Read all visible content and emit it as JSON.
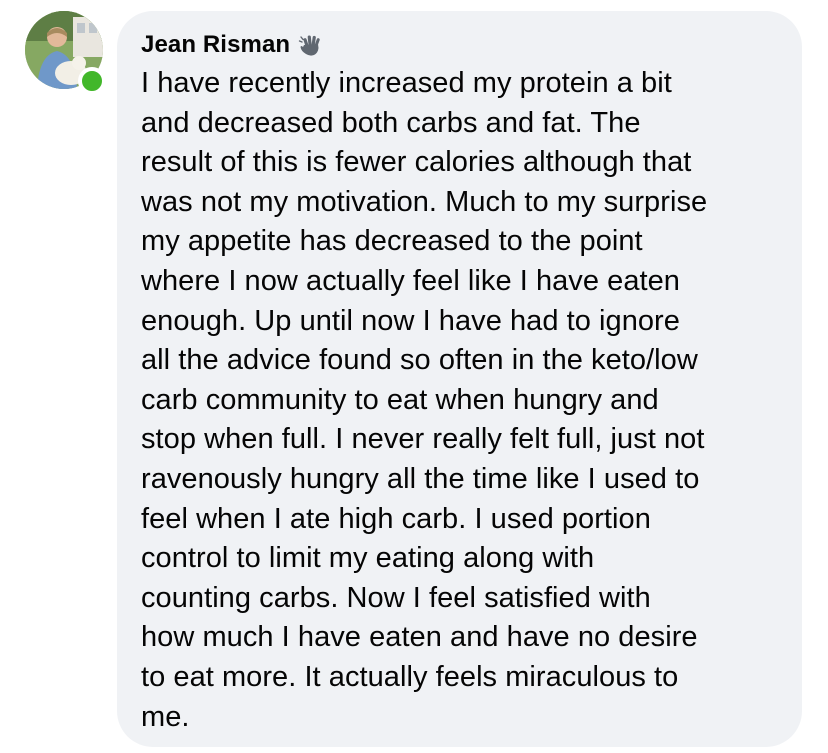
{
  "comment": {
    "author": "Jean Risman",
    "badge_icon": "waving-hand-icon",
    "text": "I have recently increased my protein a bit\nand decreased both carbs and fat. The\nresult of this is fewer calories although that\nwas not my motivation. Much to my surprise\nmy appetite has decreased to the point\nwhere I now actually feel like I have eaten\nenough. Up until now I have had to ignore\nall the advice found so often in the keto/low\ncarb community to eat when hungry and\nstop when full. I never really felt full, just not\nravenously hungry all the time like I used to\nfeel when I ate high carb. I used portion\ncontrol to limit my eating along with\ncounting carbs. Now I feel satisfied with\nhow much I have eaten and have no desire\nto eat more. It actually feels miraculous to\nme."
  },
  "colors": {
    "bubble_background": "#f0f2f5",
    "presence_online": "#42b72a",
    "text": "#050505"
  }
}
